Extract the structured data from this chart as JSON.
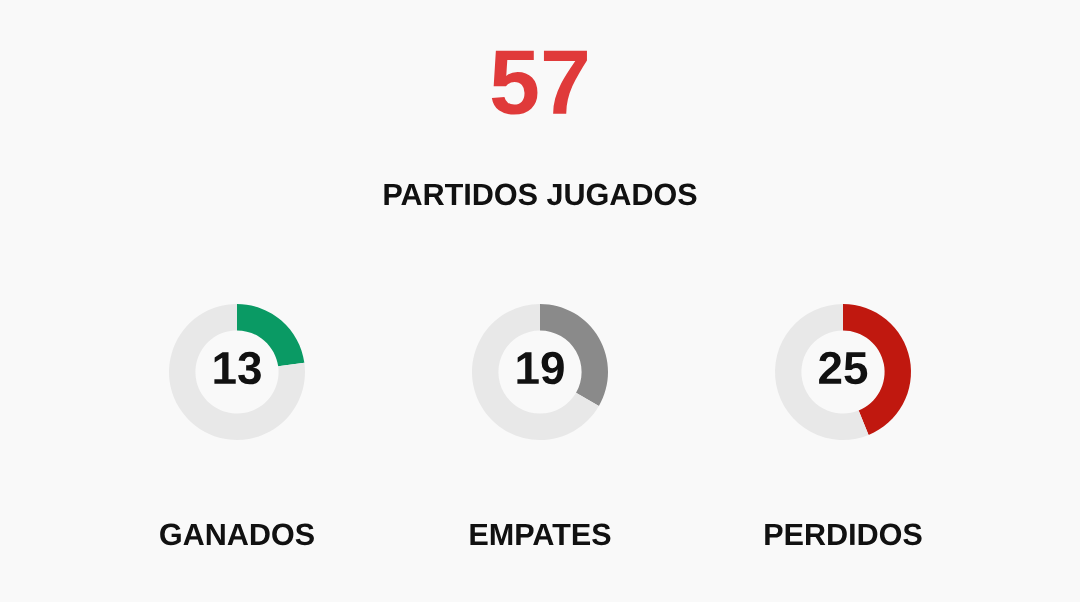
{
  "chart_data": [
    {
      "type": "other",
      "title": "57",
      "subtitle": "PARTIDOS JUGADOS"
    },
    {
      "type": "donut",
      "categories": [
        null,
        null
      ],
      "values": [
        13,
        44
      ],
      "colors": [
        "#0a9a64",
        "#e8e8e8"
      ],
      "value_labels": [
        "13",
        null
      ],
      "xlabel": "GANADOS"
    },
    {
      "type": "donut",
      "categories": [
        null,
        null
      ],
      "values": [
        19,
        38
      ],
      "colors": [
        "#8a8a8a",
        "#e8e8e8"
      ],
      "value_labels": [
        "19",
        null
      ],
      "xlabel": "EMPATES"
    },
    {
      "type": "donut",
      "categories": [
        null,
        null
      ],
      "values": [
        25,
        32
      ],
      "colors": [
        "#c0180f",
        "#e8e8e8"
      ],
      "value_labels": [
        "25",
        null
      ],
      "xlabel": "PERDIDOS"
    }
  ]
}
